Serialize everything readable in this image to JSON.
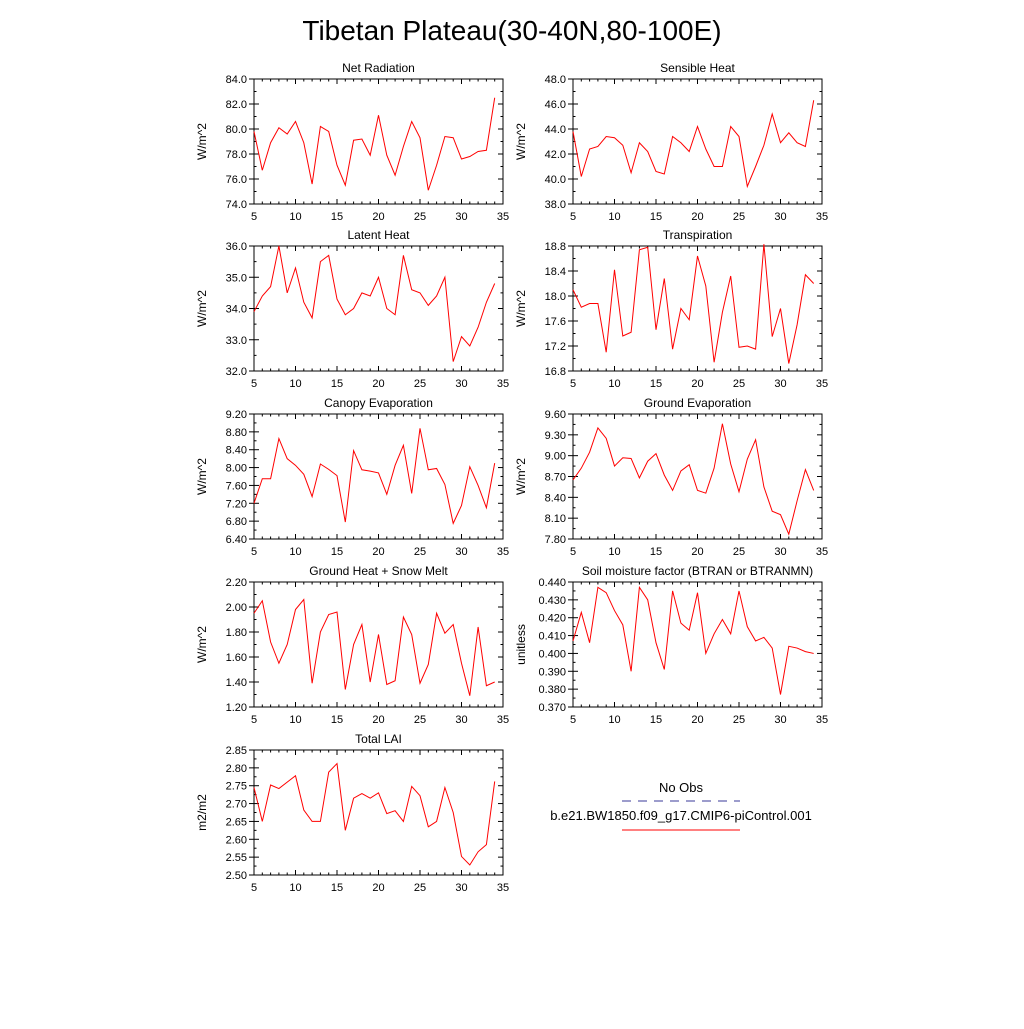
{
  "page": {
    "title": "Tibetan Plateau(30-40N,80-100E)"
  },
  "colors": {
    "model_line": "#ff0000",
    "obs_line": "#3a3a9a",
    "axis": "#000000"
  },
  "legend": {
    "obs_label": "No Obs",
    "model_label": "b.e21.BW1850.f09_g17.CMIP6-piControl.001"
  },
  "chart_data": [
    {
      "type": "line",
      "title": "Net Radiation",
      "ylabel": "W/m^2",
      "xlim": [
        5,
        35
      ],
      "ylim": [
        74.0,
        84.0
      ],
      "xticks": [
        5,
        10,
        15,
        20,
        25,
        30,
        35
      ],
      "yticks": [
        "74.0",
        "76.0",
        "78.0",
        "80.0",
        "82.0",
        "84.0"
      ],
      "x": [
        5,
        6,
        7,
        8,
        9,
        10,
        11,
        12,
        13,
        14,
        15,
        16,
        17,
        18,
        19,
        20,
        21,
        22,
        23,
        24,
        25,
        26,
        27,
        28,
        29,
        30,
        31,
        32,
        33,
        34
      ],
      "series": [
        {
          "values": [
            79.8,
            76.7,
            78.9,
            80.1,
            79.6,
            80.6,
            78.9,
            75.6,
            80.2,
            79.8,
            77.1,
            75.5,
            79.1,
            79.2,
            77.9,
            81.1,
            77.9,
            76.3,
            78.6,
            80.6,
            79.3,
            75.1,
            77.1,
            79.4,
            79.3,
            77.6,
            77.8,
            78.2,
            78.3,
            82.5
          ]
        }
      ]
    },
    {
      "type": "line",
      "title": "Sensible Heat",
      "ylabel": "W/m^2",
      "xlim": [
        5,
        35
      ],
      "ylim": [
        38.0,
        48.0
      ],
      "xticks": [
        5,
        10,
        15,
        20,
        25,
        30,
        35
      ],
      "yticks": [
        "38.0",
        "40.0",
        "42.0",
        "44.0",
        "46.0",
        "48.0"
      ],
      "x": [
        5,
        6,
        7,
        8,
        9,
        10,
        11,
        12,
        13,
        14,
        15,
        16,
        17,
        18,
        19,
        20,
        21,
        22,
        23,
        24,
        25,
        26,
        27,
        28,
        29,
        30,
        31,
        32,
        33,
        34
      ],
      "series": [
        {
          "values": [
            43.8,
            40.2,
            42.4,
            42.6,
            43.4,
            43.3,
            42.7,
            40.5,
            42.9,
            42.2,
            40.6,
            40.4,
            43.4,
            42.9,
            42.2,
            44.2,
            42.4,
            41.0,
            41.0,
            44.2,
            43.4,
            39.4,
            41.0,
            42.7,
            45.2,
            42.9,
            43.7,
            42.9,
            42.6,
            46.3
          ]
        }
      ]
    },
    {
      "type": "line",
      "title": "Latent Heat",
      "ylabel": "W/m^2",
      "xlim": [
        5,
        35
      ],
      "ylim": [
        32.0,
        36.0
      ],
      "xticks": [
        5,
        10,
        15,
        20,
        25,
        30,
        35
      ],
      "yticks": [
        "32.0",
        "33.0",
        "34.0",
        "35.0",
        "36.0"
      ],
      "x": [
        5,
        6,
        7,
        8,
        9,
        10,
        11,
        12,
        13,
        14,
        15,
        16,
        17,
        18,
        19,
        20,
        21,
        22,
        23,
        24,
        25,
        26,
        27,
        28,
        29,
        30,
        31,
        32,
        33,
        34
      ],
      "series": [
        {
          "values": [
            33.9,
            34.4,
            34.7,
            36.0,
            34.5,
            35.3,
            34.2,
            33.7,
            35.5,
            35.7,
            34.3,
            33.8,
            34.0,
            34.5,
            34.4,
            35.0,
            34.0,
            33.8,
            35.7,
            34.6,
            34.5,
            34.1,
            34.4,
            35.0,
            32.3,
            33.1,
            32.8,
            33.4,
            34.2,
            34.8
          ]
        }
      ]
    },
    {
      "type": "line",
      "title": "Transpiration",
      "ylabel": "W/m^2",
      "xlim": [
        5,
        35
      ],
      "ylim": [
        16.8,
        18.8
      ],
      "xticks": [
        5,
        10,
        15,
        20,
        25,
        30,
        35
      ],
      "yticks": [
        "16.8",
        "17.2",
        "17.6",
        "18.0",
        "18.4",
        "18.8"
      ],
      "x": [
        5,
        6,
        7,
        8,
        9,
        10,
        11,
        12,
        13,
        14,
        15,
        16,
        17,
        18,
        19,
        20,
        21,
        22,
        23,
        24,
        25,
        26,
        27,
        28,
        29,
        30,
        31,
        32,
        33,
        34
      ],
      "series": [
        {
          "values": [
            18.1,
            17.82,
            17.88,
            17.88,
            17.1,
            18.42,
            17.36,
            17.42,
            18.74,
            18.78,
            17.46,
            18.28,
            17.15,
            17.8,
            17.62,
            18.64,
            18.16,
            16.94,
            17.74,
            18.32,
            17.18,
            17.2,
            17.15,
            18.83,
            17.35,
            17.8,
            16.92,
            17.54,
            18.34,
            18.2
          ]
        }
      ]
    },
    {
      "type": "line",
      "title": "Canopy Evaporation",
      "ylabel": "W/m^2",
      "xlim": [
        5,
        35
      ],
      "ylim": [
        6.4,
        9.2
      ],
      "xticks": [
        5,
        10,
        15,
        20,
        25,
        30,
        35
      ],
      "yticks": [
        "6.40",
        "6.80",
        "7.20",
        "7.60",
        "8.00",
        "8.40",
        "8.80",
        "9.20"
      ],
      "x": [
        5,
        6,
        7,
        8,
        9,
        10,
        11,
        12,
        13,
        14,
        15,
        16,
        17,
        18,
        19,
        20,
        21,
        22,
        23,
        24,
        25,
        26,
        27,
        28,
        29,
        30,
        31,
        32,
        33,
        34
      ],
      "series": [
        {
          "values": [
            7.2,
            7.75,
            7.75,
            8.65,
            8.2,
            8.05,
            7.85,
            7.35,
            8.08,
            7.96,
            7.82,
            6.78,
            8.38,
            7.95,
            7.92,
            7.88,
            7.4,
            8.05,
            8.5,
            7.42,
            8.88,
            7.95,
            7.98,
            7.62,
            6.75,
            7.15,
            8.02,
            7.6,
            7.1,
            8.1
          ]
        }
      ]
    },
    {
      "type": "line",
      "title": "Ground Evaporation",
      "ylabel": "W/m^2",
      "xlim": [
        5,
        35
      ],
      "ylim": [
        7.8,
        9.6
      ],
      "xticks": [
        5,
        10,
        15,
        20,
        25,
        30,
        35
      ],
      "yticks": [
        "7.80",
        "8.10",
        "8.40",
        "8.70",
        "9.00",
        "9.30",
        "9.60"
      ],
      "x": [
        5,
        6,
        7,
        8,
        9,
        10,
        11,
        12,
        13,
        14,
        15,
        16,
        17,
        18,
        19,
        20,
        21,
        22,
        23,
        24,
        25,
        26,
        27,
        28,
        29,
        30,
        31,
        32,
        33,
        34
      ],
      "series": [
        {
          "values": [
            8.65,
            8.82,
            9.05,
            9.4,
            9.25,
            8.85,
            8.97,
            8.96,
            8.68,
            8.92,
            9.03,
            8.72,
            8.5,
            8.78,
            8.87,
            8.5,
            8.46,
            8.82,
            9.46,
            8.88,
            8.48,
            8.95,
            9.23,
            8.55,
            8.2,
            8.15,
            7.87,
            8.35,
            8.8,
            8.5
          ]
        }
      ]
    },
    {
      "type": "line",
      "title": "Ground Heat + Snow Melt",
      "ylabel": "W/m^2",
      "xlim": [
        5,
        35
      ],
      "ylim": [
        1.2,
        2.2
      ],
      "xticks": [
        5,
        10,
        15,
        20,
        25,
        30,
        35
      ],
      "yticks": [
        "1.20",
        "1.40",
        "1.60",
        "1.80",
        "2.00",
        "2.20"
      ],
      "x": [
        5,
        6,
        7,
        8,
        9,
        10,
        11,
        12,
        13,
        14,
        15,
        16,
        17,
        18,
        19,
        20,
        21,
        22,
        23,
        24,
        25,
        26,
        27,
        28,
        29,
        30,
        31,
        32,
        33,
        34
      ],
      "series": [
        {
          "values": [
            1.95,
            2.05,
            1.72,
            1.55,
            1.7,
            1.98,
            2.06,
            1.39,
            1.8,
            1.94,
            1.96,
            1.34,
            1.7,
            1.86,
            1.4,
            1.78,
            1.38,
            1.41,
            1.92,
            1.78,
            1.39,
            1.54,
            1.95,
            1.79,
            1.86,
            1.55,
            1.29,
            1.84,
            1.37,
            1.4
          ]
        }
      ]
    },
    {
      "type": "line",
      "title": "Soil moisture factor (BTRAN or BTRANMN)",
      "ylabel": "unitless",
      "xlim": [
        5,
        35
      ],
      "ylim": [
        0.37,
        0.44
      ],
      "xticks": [
        5,
        10,
        15,
        20,
        25,
        30,
        35
      ],
      "yticks": [
        "0.370",
        "0.380",
        "0.390",
        "0.400",
        "0.410",
        "0.420",
        "0.430",
        "0.440"
      ],
      "x": [
        5,
        6,
        7,
        8,
        9,
        10,
        11,
        12,
        13,
        14,
        15,
        16,
        17,
        18,
        19,
        20,
        21,
        22,
        23,
        24,
        25,
        26,
        27,
        28,
        29,
        30,
        31,
        32,
        33,
        34
      ],
      "series": [
        {
          "values": [
            0.407,
            0.423,
            0.406,
            0.437,
            0.434,
            0.424,
            0.416,
            0.39,
            0.437,
            0.43,
            0.406,
            0.391,
            0.435,
            0.417,
            0.413,
            0.434,
            0.4,
            0.411,
            0.419,
            0.411,
            0.435,
            0.415,
            0.407,
            0.409,
            0.403,
            0.377,
            0.404,
            0.403,
            0.401,
            0.4
          ]
        }
      ]
    },
    {
      "type": "line",
      "title": "Total LAI",
      "ylabel": "m2/m2",
      "xlim": [
        5,
        35
      ],
      "ylim": [
        2.5,
        2.85
      ],
      "xticks": [
        5,
        10,
        15,
        20,
        25,
        30,
        35
      ],
      "yticks": [
        "2.50",
        "2.55",
        "2.60",
        "2.65",
        "2.70",
        "2.75",
        "2.80",
        "2.85"
      ],
      "x": [
        5,
        6,
        7,
        8,
        9,
        10,
        11,
        12,
        13,
        14,
        15,
        16,
        17,
        18,
        19,
        20,
        21,
        22,
        23,
        24,
        25,
        26,
        27,
        28,
        29,
        30,
        31,
        32,
        33,
        34
      ],
      "series": [
        {
          "values": [
            2.745,
            2.65,
            2.752,
            2.742,
            2.76,
            2.778,
            2.682,
            2.65,
            2.65,
            2.788,
            2.812,
            2.625,
            2.715,
            2.728,
            2.715,
            2.73,
            2.672,
            2.68,
            2.65,
            2.748,
            2.722,
            2.635,
            2.65,
            2.745,
            2.675,
            2.552,
            2.528,
            2.565,
            2.585,
            2.762
          ]
        }
      ]
    }
  ]
}
